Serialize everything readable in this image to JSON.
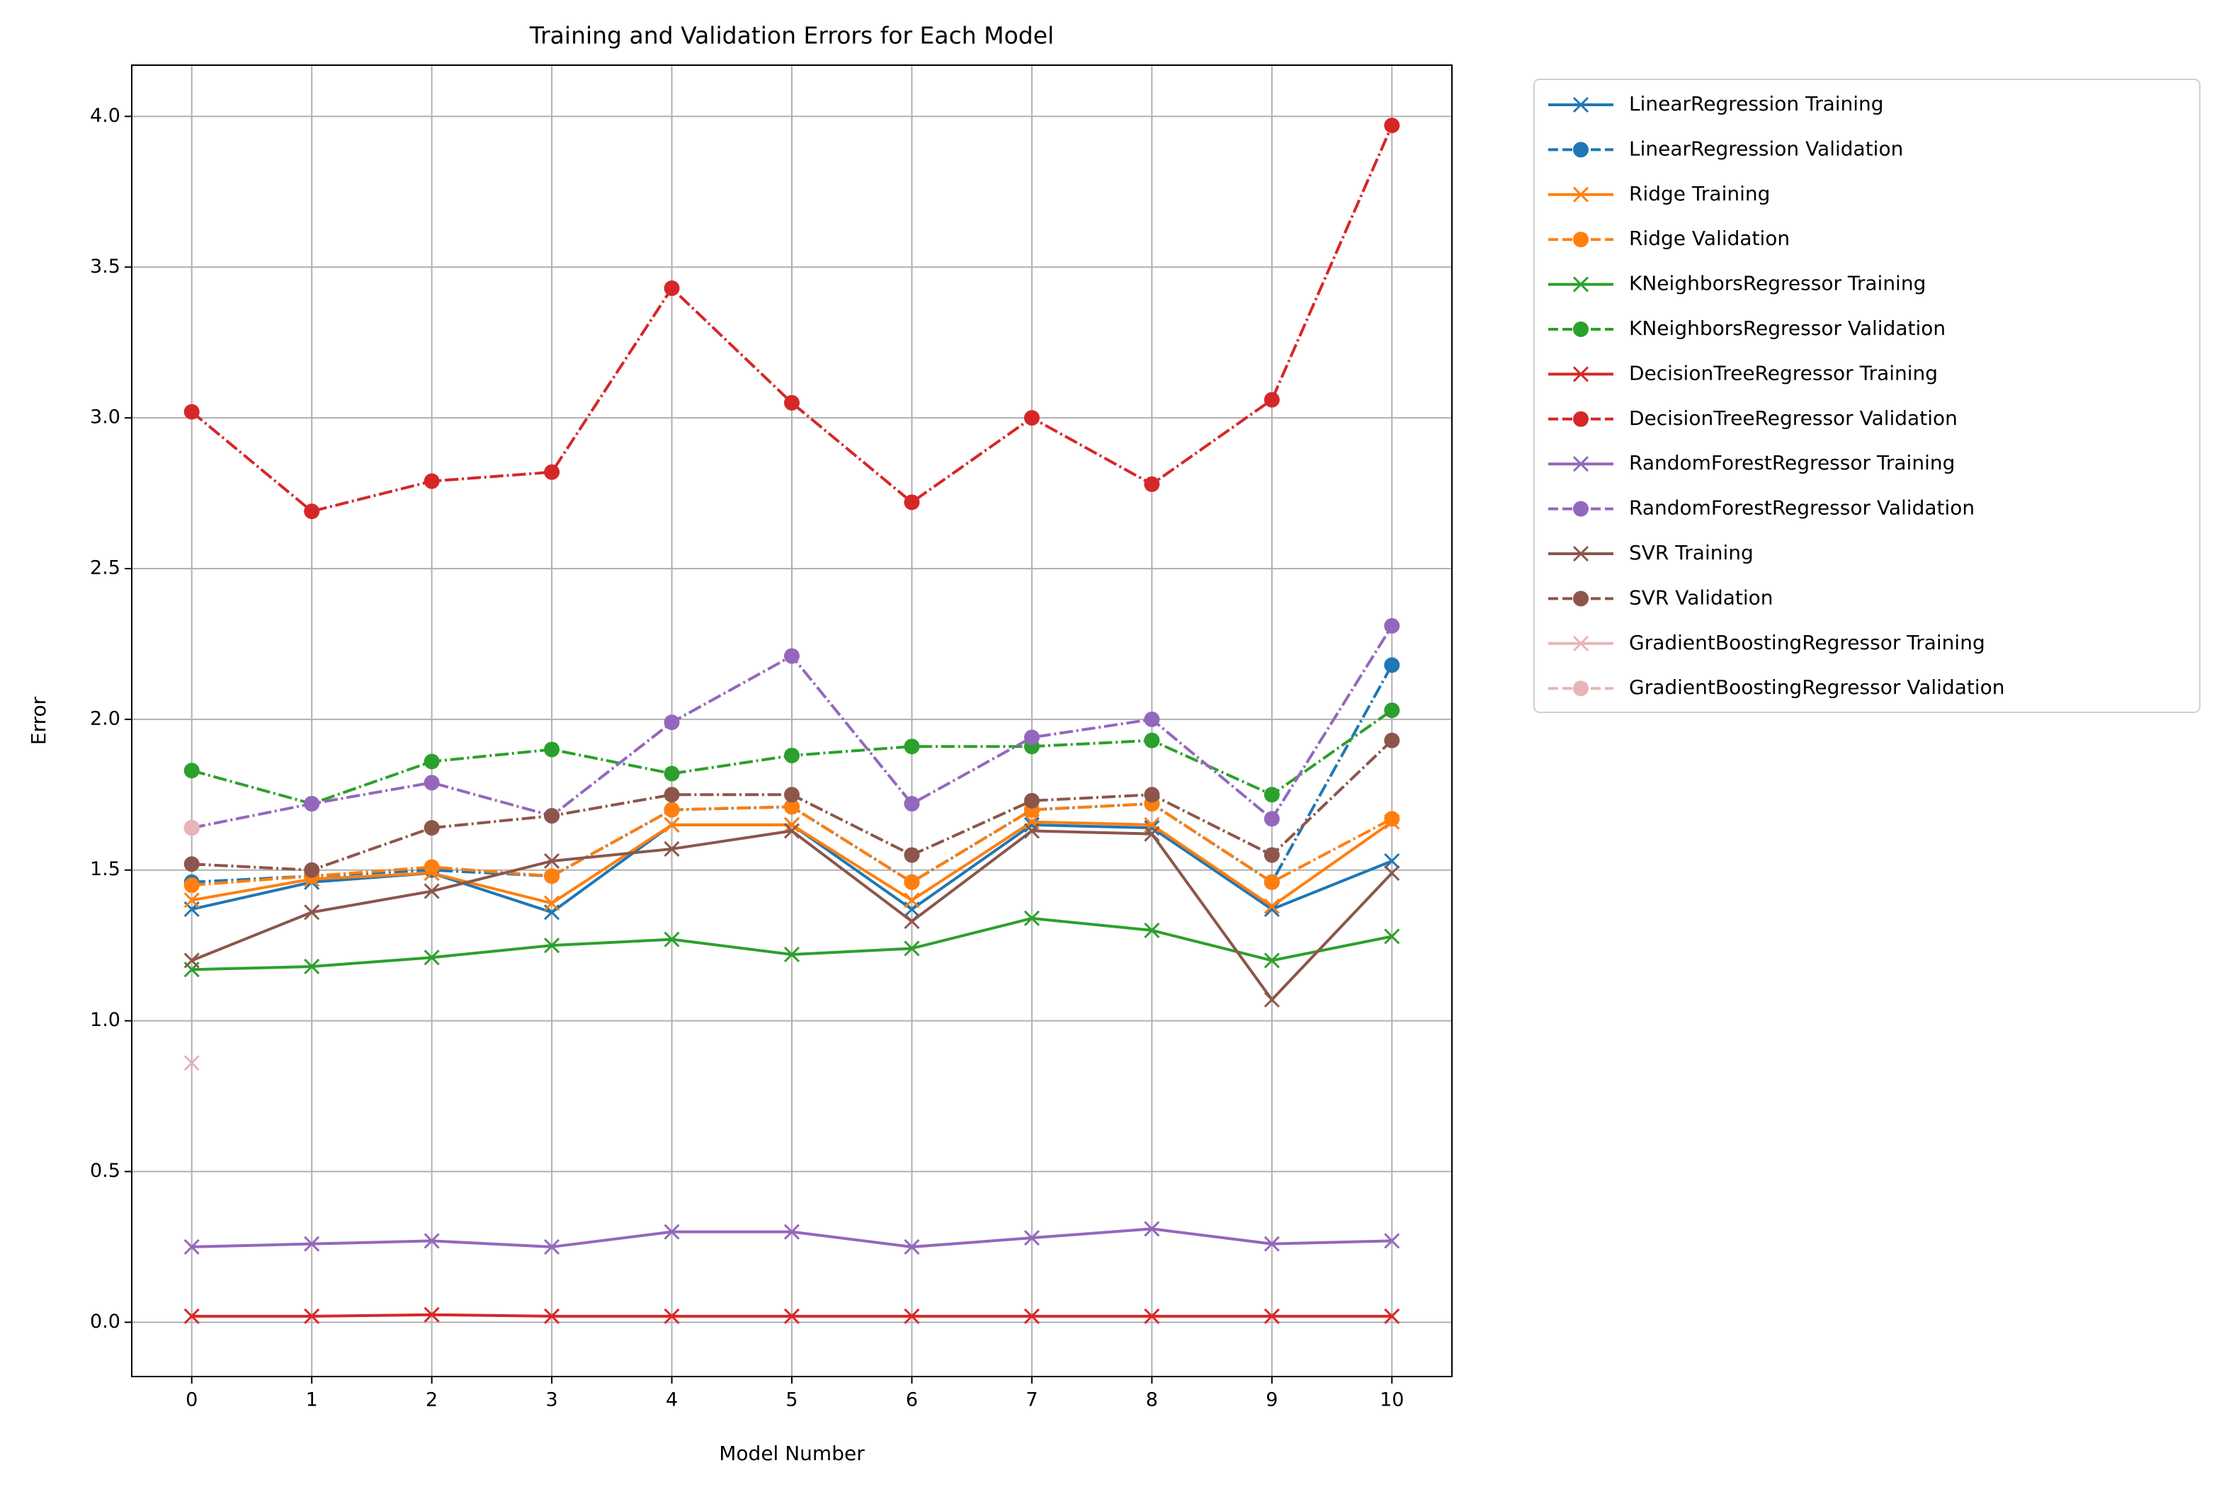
{
  "chart_data": {
    "type": "line",
    "title": "Training and Validation Errors for Each Model",
    "xlabel": "Model Number",
    "ylabel": "Error",
    "x": [
      0,
      1,
      2,
      3,
      4,
      5,
      6,
      7,
      8,
      9,
      10
    ],
    "xlim": [
      -0.5,
      10.5
    ],
    "xticks": [
      0,
      1,
      2,
      3,
      4,
      5,
      6,
      7,
      8,
      9,
      10
    ],
    "ylim": [
      -0.18,
      4.17
    ],
    "yticks": [
      {
        "value": 0,
        "label": "0.0"
      },
      0.5,
      {
        "value": 1,
        "label": "1.0"
      },
      1.5,
      {
        "value": 2,
        "label": "2.0"
      },
      2.5,
      {
        "value": 3,
        "label": "3.0"
      },
      3.5,
      {
        "value": 4,
        "label": "4.0"
      }
    ],
    "grid": true,
    "legend": "outside-right",
    "series": [
      {
        "name": "LinearRegression Training",
        "color": "#1f77b4",
        "linestyle": "solid",
        "marker": "x",
        "values": [
          1.37,
          1.46,
          1.49,
          1.36,
          1.65,
          1.65,
          1.37,
          1.65,
          1.64,
          1.37,
          1.53
        ]
      },
      {
        "name": "LinearRegression Validation",
        "color": "#1f77b4",
        "linestyle": "dashdot",
        "marker": "o",
        "values": [
          1.46,
          1.48,
          1.5,
          1.48,
          1.7,
          1.71,
          1.46,
          1.7,
          1.72,
          1.46,
          2.18
        ]
      },
      {
        "name": "Ridge Training",
        "color": "#ff7f0e",
        "linestyle": "solid",
        "marker": "x",
        "values": [
          1.4,
          1.47,
          1.49,
          1.39,
          1.65,
          1.65,
          1.4,
          1.66,
          1.65,
          1.38,
          1.66
        ]
      },
      {
        "name": "Ridge Validation",
        "color": "#ff7f0e",
        "linestyle": "dashdot",
        "marker": "o",
        "values": [
          1.45,
          1.48,
          1.51,
          1.48,
          1.7,
          1.71,
          1.46,
          1.7,
          1.72,
          1.46,
          1.67
        ]
      },
      {
        "name": "KNeighborsRegressor Training",
        "color": "#2ca02c",
        "linestyle": "solid",
        "marker": "x",
        "values": [
          1.17,
          1.18,
          1.21,
          1.25,
          1.27,
          1.22,
          1.24,
          1.34,
          1.3,
          1.2,
          1.28
        ]
      },
      {
        "name": "KNeighborsRegressor Validation",
        "color": "#2ca02c",
        "linestyle": "dashdot",
        "marker": "o",
        "values": [
          1.83,
          1.72,
          1.86,
          1.9,
          1.82,
          1.88,
          1.91,
          1.91,
          1.93,
          1.75,
          2.03
        ]
      },
      {
        "name": "DecisionTreeRegressor Training",
        "color": "#d62728",
        "linestyle": "solid",
        "marker": "x",
        "values": [
          0.02,
          0.02,
          0.025,
          0.02,
          0.02,
          0.02,
          0.02,
          0.02,
          0.02,
          0.02,
          0.02
        ]
      },
      {
        "name": "DecisionTreeRegressor Validation",
        "color": "#d62728",
        "linestyle": "dashdot",
        "marker": "o",
        "values": [
          3.02,
          2.69,
          2.79,
          2.82,
          3.43,
          3.05,
          2.72,
          3.0,
          2.78,
          3.06,
          3.97
        ]
      },
      {
        "name": "RandomForestRegressor Training",
        "color": "#9467bd",
        "linestyle": "solid",
        "marker": "x",
        "values": [
          0.25,
          0.26,
          0.27,
          0.25,
          0.3,
          0.3,
          0.25,
          0.28,
          0.31,
          0.26,
          0.27
        ]
      },
      {
        "name": "RandomForestRegressor Validation",
        "color": "#9467bd",
        "linestyle": "dashdot",
        "marker": "o",
        "values": [
          1.64,
          1.72,
          1.79,
          1.68,
          1.99,
          2.21,
          1.72,
          1.94,
          2.0,
          1.67,
          2.31
        ]
      },
      {
        "name": "SVR Training",
        "color": "#8c564b",
        "linestyle": "solid",
        "marker": "x",
        "values": [
          1.2,
          1.36,
          1.43,
          1.53,
          1.57,
          1.63,
          1.33,
          1.63,
          1.62,
          1.07,
          1.49
        ]
      },
      {
        "name": "SVR Validation",
        "color": "#8c564b",
        "linestyle": "dashdot",
        "marker": "o",
        "values": [
          1.52,
          1.5,
          1.64,
          1.68,
          1.75,
          1.75,
          1.55,
          1.73,
          1.75,
          1.55,
          1.93
        ]
      },
      {
        "name": "GradientBoostingRegressor Training",
        "color": "#e8b4b8",
        "linestyle": "solid",
        "marker": "x",
        "values": [
          0.86,
          null,
          null,
          null,
          null,
          null,
          null,
          null,
          null,
          null,
          null
        ]
      },
      {
        "name": "GradientBoostingRegressor Validation",
        "color": "#e8b4b8",
        "linestyle": "dashdot",
        "marker": "o",
        "values": [
          1.64,
          null,
          null,
          null,
          null,
          null,
          null,
          null,
          null,
          null,
          null
        ]
      }
    ]
  }
}
